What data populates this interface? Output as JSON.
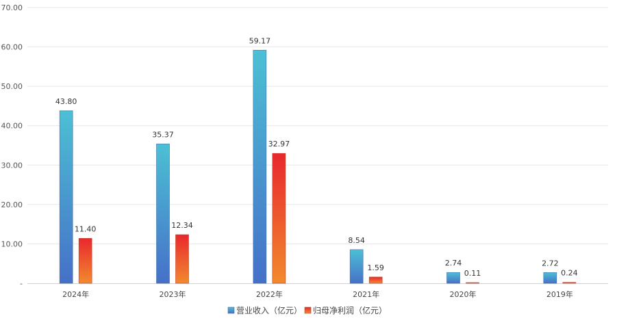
{
  "chart_data": {
    "type": "bar",
    "categories": [
      "2024年",
      "2023年",
      "2022年",
      "2021年",
      "2020年",
      "2019年"
    ],
    "series": [
      {
        "name": "营业收入（亿元）",
        "values": [
          43.8,
          35.37,
          59.17,
          8.54,
          2.74,
          2.72
        ],
        "labels": [
          "43.80",
          "35.37",
          "59.17",
          "8.54",
          "2.74",
          "2.72"
        ]
      },
      {
        "name": "归母净利润（亿元）",
        "values": [
          11.4,
          12.34,
          32.97,
          1.59,
          0.11,
          0.24
        ],
        "labels": [
          "11.40",
          "12.34",
          "32.97",
          "1.59",
          "0.11",
          "0.24"
        ]
      }
    ],
    "yticks": [
      "-",
      "10.00",
      "20.00",
      "30.00",
      "40.00",
      "50.00",
      "60.00",
      "70.00"
    ],
    "ylim": [
      0,
      70
    ],
    "grid": true,
    "legend_position": "bottom-center",
    "colors": {
      "revenue_top": "#4cc0d4",
      "revenue_bottom": "#4670c8",
      "profit_top": "#e8282d",
      "profit_bottom": "#f28a2e"
    }
  }
}
